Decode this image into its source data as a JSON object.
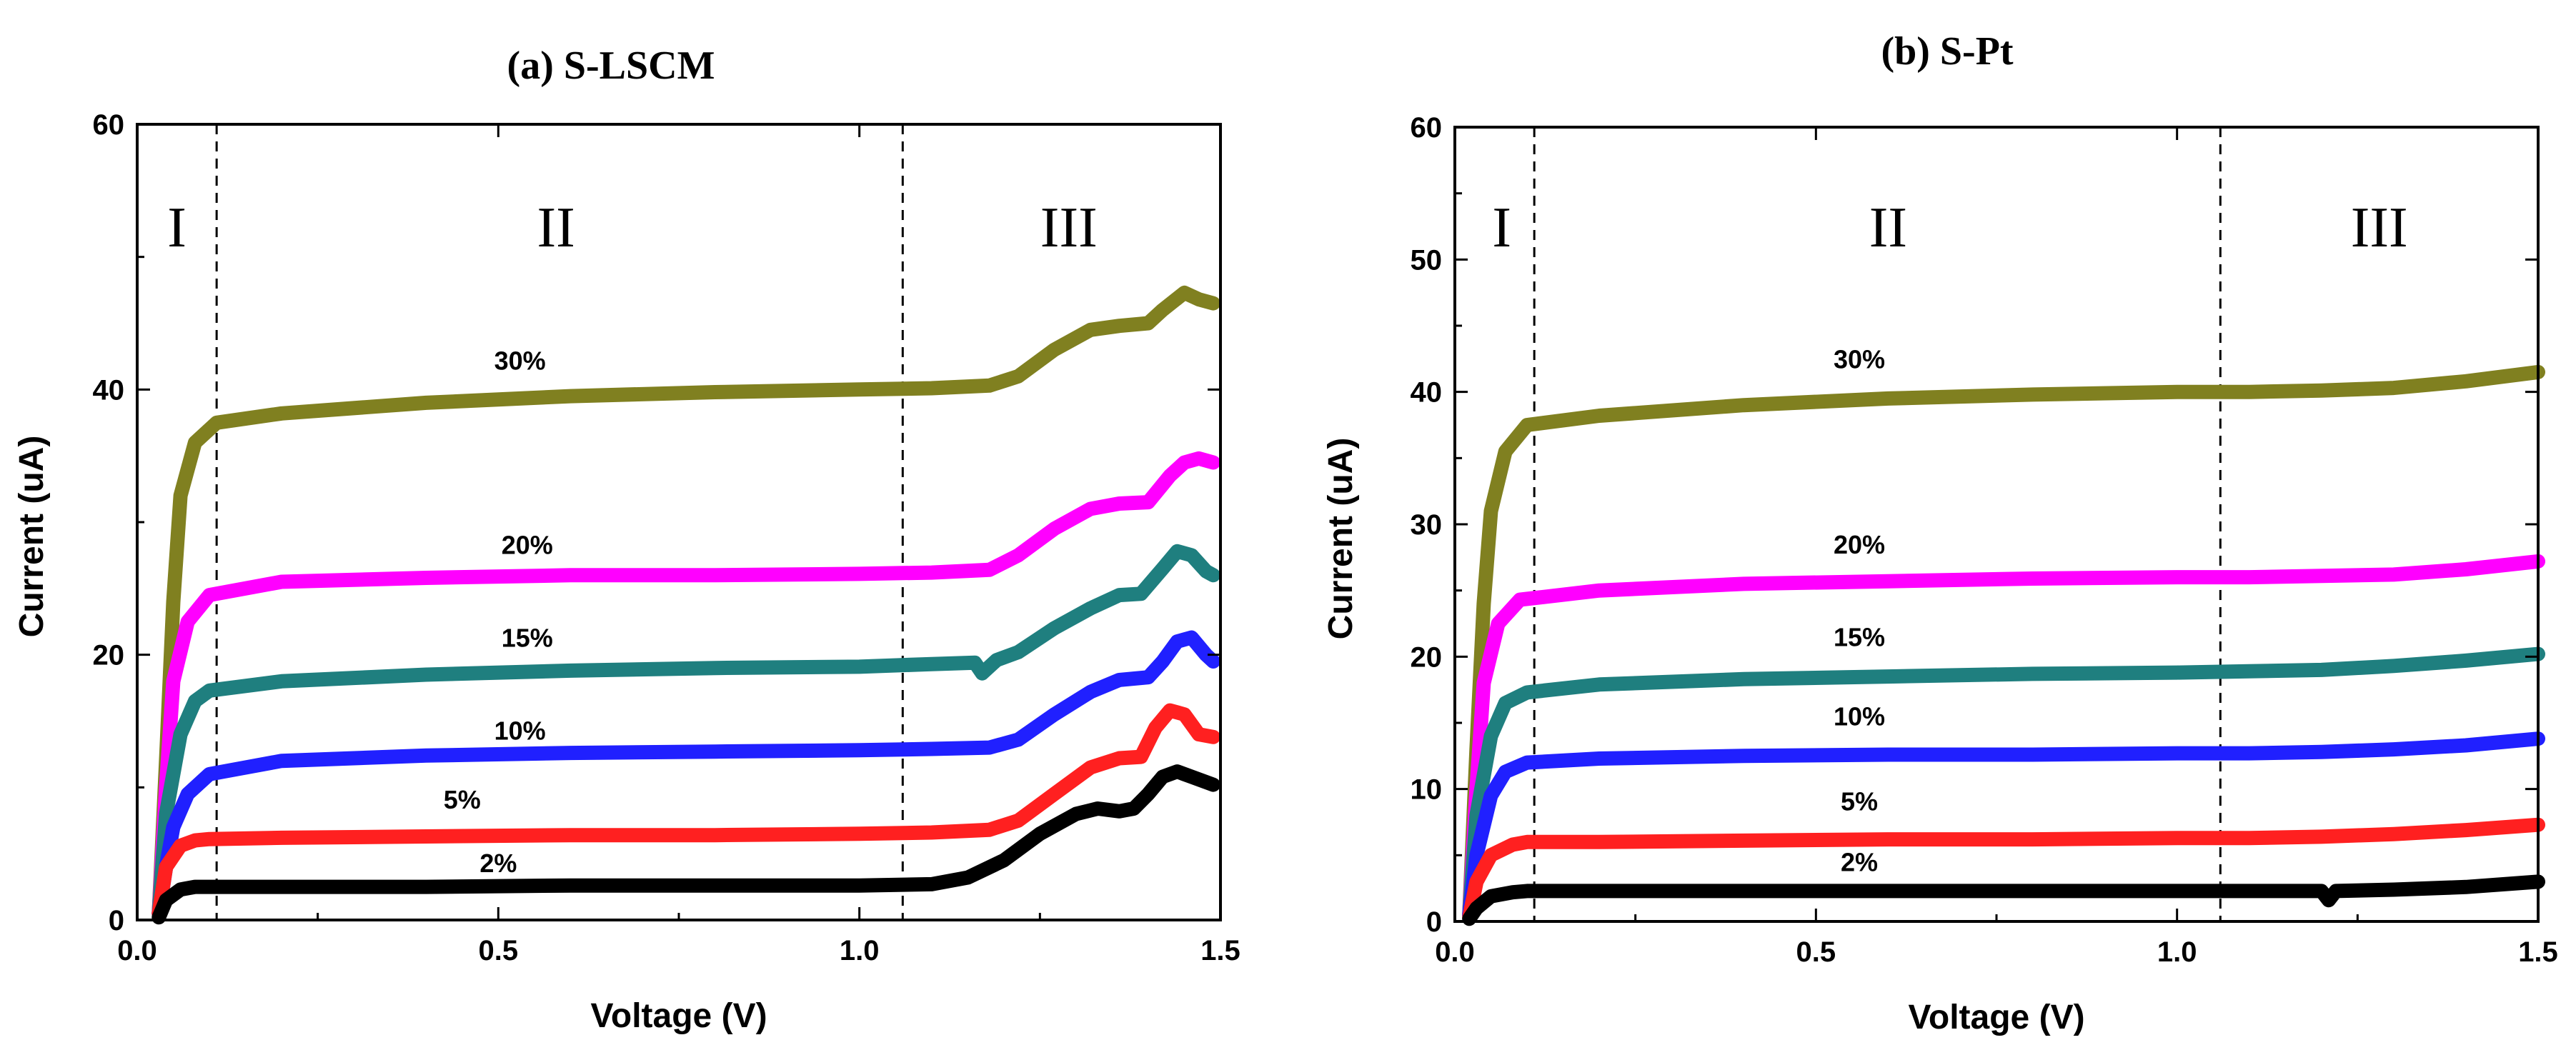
{
  "chart_data": [
    {
      "type": "line",
      "title": "(a)  S-LSCM",
      "xlabel": "Voltage (V)",
      "ylabel": "Current (uA)",
      "xlim": [
        0,
        1.5
      ],
      "ylim": [
        0,
        60
      ],
      "xticks": [
        0.0,
        0.5,
        1.0,
        1.5
      ],
      "xtick_labels": [
        "0.0",
        "0.5",
        "1.0",
        "1.5"
      ],
      "yticks": [
        0,
        20,
        40,
        60
      ],
      "ytick_labels": [
        "0",
        "20",
        "40",
        "60"
      ],
      "dividers": [
        0.11,
        1.06
      ],
      "regions": [
        {
          "label": "I",
          "x": 0.055
        },
        {
          "label": "II",
          "x": 0.58
        },
        {
          "label": "III",
          "x": 1.29
        }
      ],
      "series": [
        {
          "name": "30%",
          "color": "#808020",
          "label_at": [
            0.53,
            41.5
          ],
          "x": [
            0.03,
            0.04,
            0.05,
            0.06,
            0.08,
            0.11,
            0.2,
            0.4,
            0.6,
            0.8,
            1.0,
            1.1,
            1.18,
            1.22,
            1.27,
            1.32,
            1.36,
            1.4,
            1.42,
            1.45,
            1.47,
            1.49
          ],
          "y": [
            0.5,
            12,
            24,
            32,
            36,
            37.5,
            38.2,
            39.0,
            39.5,
            39.8,
            40.0,
            40.1,
            40.3,
            41.0,
            43.0,
            44.5,
            44.8,
            45.0,
            46.0,
            47.3,
            46.8,
            46.5
          ]
        },
        {
          "name": "20%",
          "color": "#ff00ff",
          "label_at": [
            0.54,
            27.6
          ],
          "x": [
            0.03,
            0.04,
            0.05,
            0.07,
            0.1,
            0.2,
            0.4,
            0.6,
            0.8,
            1.0,
            1.1,
            1.18,
            1.22,
            1.27,
            1.32,
            1.36,
            1.4,
            1.43,
            1.45,
            1.47,
            1.49
          ],
          "y": [
            0.5,
            10,
            18,
            22.5,
            24.5,
            25.5,
            25.8,
            26.0,
            26.0,
            26.1,
            26.2,
            26.4,
            27.5,
            29.5,
            31.0,
            31.4,
            31.5,
            33.5,
            34.5,
            34.8,
            34.5
          ]
        },
        {
          "name": "15%",
          "color": "#1f7f7f",
          "label_at": [
            0.54,
            20.6
          ],
          "x": [
            0.03,
            0.04,
            0.06,
            0.08,
            0.1,
            0.2,
            0.4,
            0.6,
            0.8,
            1.0,
            1.1,
            1.16,
            1.17,
            1.19,
            1.22,
            1.27,
            1.32,
            1.36,
            1.39,
            1.42,
            1.44,
            1.46,
            1.48,
            1.49
          ],
          "y": [
            0.5,
            8,
            14,
            16.5,
            17.3,
            18.0,
            18.5,
            18.8,
            19.0,
            19.1,
            19.3,
            19.4,
            18.6,
            19.6,
            20.2,
            22.0,
            23.5,
            24.5,
            24.6,
            26.5,
            27.8,
            27.5,
            26.3,
            26.0
          ]
        },
        {
          "name": "10%",
          "color": "#2020ff",
          "label_at": [
            0.53,
            13.6
          ],
          "x": [
            0.03,
            0.04,
            0.05,
            0.07,
            0.1,
            0.2,
            0.4,
            0.6,
            0.8,
            1.0,
            1.1,
            1.18,
            1.22,
            1.27,
            1.32,
            1.36,
            1.4,
            1.42,
            1.44,
            1.46,
            1.48,
            1.49
          ],
          "y": [
            0.5,
            4,
            7,
            9.5,
            11.0,
            12.0,
            12.4,
            12.6,
            12.7,
            12.8,
            12.9,
            13.0,
            13.6,
            15.5,
            17.2,
            18.1,
            18.3,
            19.5,
            21.0,
            21.3,
            20.0,
            19.5
          ]
        },
        {
          "name": "5%",
          "color": "#ff2020",
          "label_at": [
            0.45,
            8.4
          ],
          "x": [
            0.03,
            0.04,
            0.06,
            0.08,
            0.1,
            0.2,
            0.4,
            0.6,
            0.8,
            1.0,
            1.1,
            1.18,
            1.22,
            1.27,
            1.32,
            1.36,
            1.39,
            1.41,
            1.43,
            1.45,
            1.47,
            1.49
          ],
          "y": [
            0.5,
            4,
            5.6,
            6.0,
            6.1,
            6.2,
            6.3,
            6.4,
            6.4,
            6.5,
            6.6,
            6.8,
            7.5,
            9.5,
            11.5,
            12.2,
            12.3,
            14.5,
            15.8,
            15.5,
            14.0,
            13.8
          ]
        },
        {
          "name": "2%",
          "color": "#000000",
          "label_at": [
            0.5,
            3.6
          ],
          "x": [
            0.03,
            0.04,
            0.06,
            0.08,
            0.1,
            0.2,
            0.4,
            0.6,
            0.8,
            1.0,
            1.1,
            1.15,
            1.2,
            1.25,
            1.3,
            1.33,
            1.36,
            1.38,
            1.4,
            1.42,
            1.44,
            1.46,
            1.49
          ],
          "y": [
            0.2,
            1.5,
            2.3,
            2.5,
            2.5,
            2.5,
            2.5,
            2.6,
            2.6,
            2.6,
            2.7,
            3.2,
            4.5,
            6.5,
            8.0,
            8.4,
            8.2,
            8.4,
            9.5,
            10.8,
            11.2,
            10.8,
            10.2
          ]
        }
      ]
    },
    {
      "type": "line",
      "title": "(b) S-Pt",
      "xlabel": "Voltage (V)",
      "ylabel": "Current (uA)",
      "xlim": [
        0,
        1.5
      ],
      "ylim": [
        0,
        60
      ],
      "xticks": [
        0.0,
        0.5,
        1.0,
        1.5
      ],
      "xtick_labels": [
        "0.0",
        "0.5",
        "1.0",
        "1.5"
      ],
      "yticks": [
        0,
        10,
        20,
        30,
        40,
        50,
        60
      ],
      "ytick_labels": [
        "0",
        "10",
        "20",
        "30",
        "40",
        "50",
        "60"
      ],
      "dividers": [
        0.11,
        1.06
      ],
      "regions": [
        {
          "label": "I",
          "x": 0.065
        },
        {
          "label": "II",
          "x": 0.6
        },
        {
          "label": "III",
          "x": 1.28
        }
      ],
      "series": [
        {
          "name": "30%",
          "color": "#808020",
          "label_at": [
            0.56,
            41.8
          ],
          "x": [
            0.02,
            0.03,
            0.04,
            0.05,
            0.07,
            0.1,
            0.2,
            0.4,
            0.6,
            0.8,
            1.0,
            1.1,
            1.2,
            1.3,
            1.4,
            1.5
          ],
          "y": [
            0.5,
            13,
            24,
            31,
            35.5,
            37.5,
            38.2,
            39.0,
            39.5,
            39.8,
            40.0,
            40.0,
            40.1,
            40.3,
            40.8,
            41.5
          ]
        },
        {
          "name": "20%",
          "color": "#ff00ff",
          "label_at": [
            0.56,
            27.8
          ],
          "x": [
            0.02,
            0.03,
            0.04,
            0.06,
            0.09,
            0.2,
            0.4,
            0.6,
            0.8,
            1.0,
            1.1,
            1.2,
            1.3,
            1.4,
            1.5
          ],
          "y": [
            0.5,
            10,
            18,
            22.5,
            24.3,
            25.0,
            25.5,
            25.7,
            25.9,
            26.0,
            26.0,
            26.1,
            26.2,
            26.6,
            27.2
          ]
        },
        {
          "name": "15%",
          "color": "#1f7f7f",
          "label_at": [
            0.56,
            20.8
          ],
          "x": [
            0.02,
            0.03,
            0.05,
            0.07,
            0.1,
            0.2,
            0.4,
            0.6,
            0.8,
            1.0,
            1.1,
            1.2,
            1.3,
            1.4,
            1.5
          ],
          "y": [
            0.5,
            8,
            14,
            16.5,
            17.3,
            17.9,
            18.3,
            18.5,
            18.7,
            18.8,
            18.9,
            19.0,
            19.3,
            19.7,
            20.2
          ]
        },
        {
          "name": "10%",
          "color": "#2020ff",
          "label_at": [
            0.56,
            14.8
          ],
          "x": [
            0.02,
            0.03,
            0.05,
            0.07,
            0.1,
            0.2,
            0.4,
            0.6,
            0.8,
            1.0,
            1.1,
            1.2,
            1.3,
            1.4,
            1.5
          ],
          "y": [
            0.5,
            5,
            9.5,
            11.3,
            12.0,
            12.3,
            12.5,
            12.6,
            12.6,
            12.7,
            12.7,
            12.8,
            13.0,
            13.3,
            13.8
          ]
        },
        {
          "name": "5%",
          "color": "#ff2020",
          "label_at": [
            0.56,
            8.4
          ],
          "x": [
            0.02,
            0.03,
            0.05,
            0.08,
            0.1,
            0.2,
            0.4,
            0.6,
            0.8,
            1.0,
            1.1,
            1.2,
            1.3,
            1.4,
            1.5
          ],
          "y": [
            0.3,
            3,
            5.0,
            5.8,
            6.0,
            6.0,
            6.1,
            6.2,
            6.2,
            6.3,
            6.3,
            6.4,
            6.6,
            6.9,
            7.3
          ]
        },
        {
          "name": "2%",
          "color": "#000000",
          "label_at": [
            0.56,
            3.8
          ],
          "x": [
            0.02,
            0.03,
            0.05,
            0.08,
            0.1,
            0.2,
            0.4,
            0.6,
            0.8,
            1.0,
            1.1,
            1.2,
            1.21,
            1.22,
            1.3,
            1.4,
            1.5
          ],
          "y": [
            0.2,
            1.0,
            1.9,
            2.2,
            2.3,
            2.3,
            2.3,
            2.3,
            2.3,
            2.3,
            2.3,
            2.3,
            1.6,
            2.3,
            2.4,
            2.6,
            3.0
          ]
        }
      ]
    }
  ]
}
